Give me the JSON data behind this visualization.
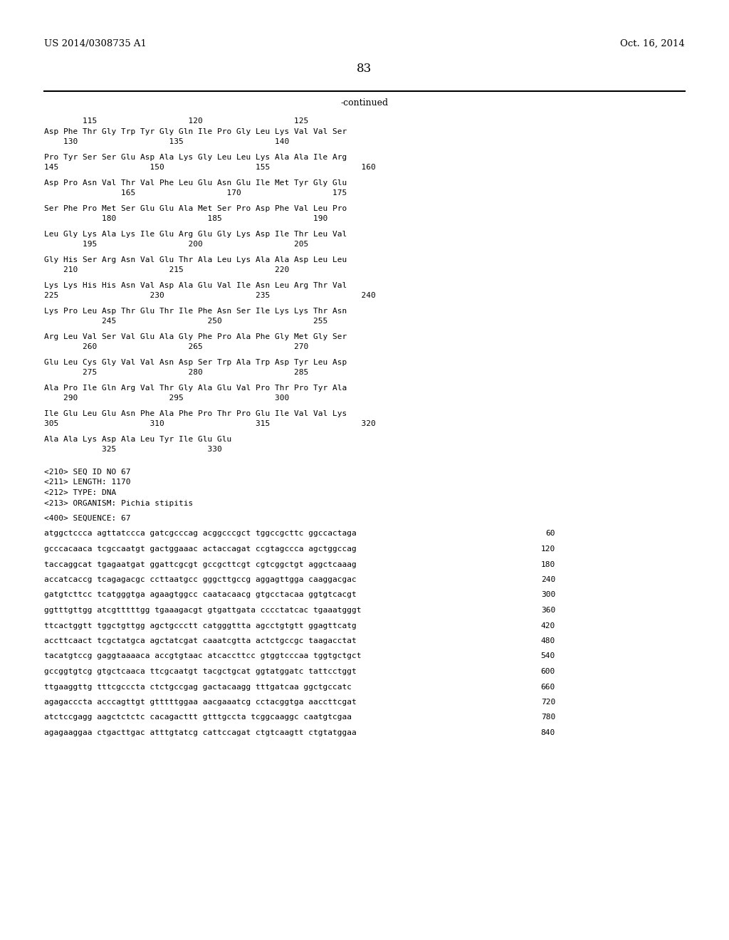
{
  "header_left": "US 2014/0308735 A1",
  "header_right": "Oct. 16, 2014",
  "page_number": "83",
  "continued_label": "-continued",
  "background_color": "#ffffff",
  "text_color": "#000000",
  "content": [
    {
      "type": "ruler",
      "text": "        115                   120                   125"
    },
    {
      "type": "seq",
      "text": "Asp Phe Thr Gly Trp Tyr Gly Gln Ile Pro Gly Leu Lys Val Val Ser"
    },
    {
      "type": "num",
      "text": "    130                   135                   140"
    },
    {
      "type": "gap"
    },
    {
      "type": "seq",
      "text": "Pro Tyr Ser Ser Glu Asp Ala Lys Gly Leu Leu Lys Ala Ala Ile Arg"
    },
    {
      "type": "num",
      "text": "145                   150                   155                   160"
    },
    {
      "type": "gap"
    },
    {
      "type": "seq",
      "text": "Asp Pro Asn Val Thr Val Phe Leu Glu Asn Glu Ile Met Tyr Gly Glu"
    },
    {
      "type": "num",
      "text": "                165                   170                   175"
    },
    {
      "type": "gap"
    },
    {
      "type": "seq",
      "text": "Ser Phe Pro Met Ser Glu Glu Ala Met Ser Pro Asp Phe Val Leu Pro"
    },
    {
      "type": "num",
      "text": "            180                   185                   190"
    },
    {
      "type": "gap"
    },
    {
      "type": "seq",
      "text": "Leu Gly Lys Ala Lys Ile Glu Arg Glu Gly Lys Asp Ile Thr Leu Val"
    },
    {
      "type": "num",
      "text": "        195                   200                   205"
    },
    {
      "type": "gap"
    },
    {
      "type": "seq",
      "text": "Gly His Ser Arg Asn Val Glu Thr Ala Leu Lys Ala Ala Asp Leu Leu"
    },
    {
      "type": "num",
      "text": "    210                   215                   220"
    },
    {
      "type": "gap"
    },
    {
      "type": "seq",
      "text": "Lys Lys His His Asn Val Asp Ala Glu Val Ile Asn Leu Arg Thr Val"
    },
    {
      "type": "num",
      "text": "225                   230                   235                   240"
    },
    {
      "type": "gap"
    },
    {
      "type": "seq",
      "text": "Lys Pro Leu Asp Thr Glu Thr Ile Phe Asn Ser Ile Lys Lys Thr Asn"
    },
    {
      "type": "num",
      "text": "            245                   250                   255"
    },
    {
      "type": "gap"
    },
    {
      "type": "seq",
      "text": "Arg Leu Val Ser Val Glu Ala Gly Phe Pro Ala Phe Gly Met Gly Ser"
    },
    {
      "type": "num",
      "text": "        260                   265                   270"
    },
    {
      "type": "gap"
    },
    {
      "type": "seq",
      "text": "Glu Leu Cys Gly Val Val Asn Asp Ser Trp Ala Trp Asp Tyr Leu Asp"
    },
    {
      "type": "num",
      "text": "        275                   280                   285"
    },
    {
      "type": "gap"
    },
    {
      "type": "seq",
      "text": "Ala Pro Ile Gln Arg Val Thr Gly Ala Glu Val Pro Thr Pro Tyr Ala"
    },
    {
      "type": "num",
      "text": "    290                   295                   300"
    },
    {
      "type": "gap"
    },
    {
      "type": "seq",
      "text": "Ile Glu Leu Glu Asn Phe Ala Phe Pro Thr Pro Glu Ile Val Val Lys"
    },
    {
      "type": "num",
      "text": "305                   310                   315                   320"
    },
    {
      "type": "gap"
    },
    {
      "type": "seq",
      "text": "Ala Ala Lys Asp Ala Leu Tyr Ile Glu Glu"
    },
    {
      "type": "num",
      "text": "            325                   330"
    },
    {
      "type": "gap2"
    },
    {
      "type": "meta",
      "text": "<210> SEQ ID NO 67"
    },
    {
      "type": "meta",
      "text": "<211> LENGTH: 1170"
    },
    {
      "type": "meta",
      "text": "<212> TYPE: DNA"
    },
    {
      "type": "meta",
      "text": "<213> ORGANISM: Pichia stipitis"
    },
    {
      "type": "gap"
    },
    {
      "type": "meta",
      "text": "<400> SEQUENCE: 67"
    },
    {
      "type": "gap"
    },
    {
      "type": "dna",
      "text": "atggctccca agttatccca gatcgcccag acggcccgct tggccgcttc ggccactaga",
      "num": "60"
    },
    {
      "type": "gap"
    },
    {
      "type": "dna",
      "text": "gcccacaaca tcgccaatgt gactggaaac actaccagat ccgtagccca agctggccag",
      "num": "120"
    },
    {
      "type": "gap"
    },
    {
      "type": "dna",
      "text": "taccaggcat tgagaatgat ggattcgcgt gccgcttcgt cgtcggctgt aggctcaaag",
      "num": "180"
    },
    {
      "type": "gap"
    },
    {
      "type": "dna",
      "text": "accatcaccg tcagagacgc ccttaatgcc gggcttgccg aggagttgga caaggacgac",
      "num": "240"
    },
    {
      "type": "gap"
    },
    {
      "type": "dna",
      "text": "gatgtcttcc tcatgggtga agaagtggcc caatacaacg gtgcctacaa ggtgtcacgt",
      "num": "300"
    },
    {
      "type": "gap"
    },
    {
      "type": "dna",
      "text": "ggtttgttgg atcgtttttgg tgaaagacgt gtgattgata cccctatcac tgaaatgggt",
      "num": "360"
    },
    {
      "type": "gap"
    },
    {
      "type": "dna",
      "text": "ttcactggtt tggctgttgg agctgccctt catgggttta agcctgtgtt ggagttcatg",
      "num": "420"
    },
    {
      "type": "gap"
    },
    {
      "type": "dna",
      "text": "accttcaact tcgctatgca agctatcgat caaatcgtta actctgccgc taagacctat",
      "num": "480"
    },
    {
      "type": "gap"
    },
    {
      "type": "dna",
      "text": "tacatgtccg gaggtaaaaca accgtgtaac atcaccttcc gtggtcccaa tggtgctgct",
      "num": "540"
    },
    {
      "type": "gap"
    },
    {
      "type": "dna",
      "text": "gccggtgtcg gtgctcaaca ttcgcaatgt tacgctgcat ggtatggatc tattcctggt",
      "num": "600"
    },
    {
      "type": "gap"
    },
    {
      "type": "dna",
      "text": "ttgaaggttg tttcgcccta ctctgccgag gactacaagg tttgatcaa ggctgccatc",
      "num": "660"
    },
    {
      "type": "gap"
    },
    {
      "type": "dna",
      "text": "agagacccta acccagttgt gtttttggaa aacgaaatcg cctacggtga aaccttcgat",
      "num": "720"
    },
    {
      "type": "gap"
    },
    {
      "type": "dna",
      "text": "atctccgagg aagctctctc cacagacttt gtttgccta tcggcaaggc caatgtcgaa",
      "num": "780"
    },
    {
      "type": "gap"
    },
    {
      "type": "dna",
      "text": "agagaaggaa ctgacttgac atttgtatcg cattccagat ctgtcaagtt ctgtatggaa",
      "num": "840"
    }
  ]
}
